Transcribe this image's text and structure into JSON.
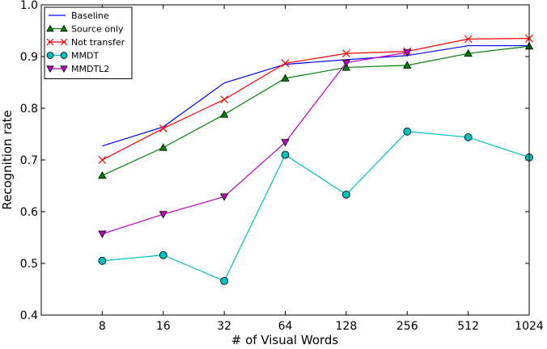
{
  "chart_data": {
    "type": "line",
    "title": "",
    "xlabel": "# of Visual Words",
    "ylabel": "Recognition rate",
    "x_ticks": [
      "8",
      "16",
      "32",
      "64",
      "128",
      "256",
      "512",
      "1024"
    ],
    "xlim_index": [
      -1,
      7
    ],
    "ylim": [
      0.4,
      1.0
    ],
    "y_ticks": [
      "0.4",
      "0.5",
      "0.6",
      "0.7",
      "0.8",
      "0.9",
      "1.0"
    ],
    "y_tick_values": [
      0.4,
      0.5,
      0.6,
      0.7,
      0.8,
      0.9,
      1.0
    ],
    "legend_position": "top-left",
    "grid": false,
    "series": [
      {
        "name": "Baseline",
        "color": "#0000ff",
        "marker": "none",
        "values": [
          0.727,
          0.764,
          0.849,
          0.885,
          0.894,
          0.902,
          0.921,
          0.921
        ]
      },
      {
        "name": "Source only",
        "color": "#008000",
        "marker": "triangle-up",
        "values": [
          0.67,
          0.724,
          0.788,
          0.858,
          0.879,
          0.883,
          0.906,
          0.92
        ]
      },
      {
        "name": "Not transfer",
        "color": "#ff0000",
        "marker": "x",
        "values": [
          0.7,
          0.761,
          0.817,
          0.887,
          0.906,
          0.91,
          0.934,
          0.935
        ]
      },
      {
        "name": "MMDT",
        "color": "#00bfbf",
        "marker": "circle",
        "values": [
          0.505,
          0.516,
          0.466,
          0.71,
          0.633,
          0.755,
          0.744,
          0.705
        ]
      },
      {
        "name": "MMDTL2",
        "color": "#bf00bf",
        "marker": "triangle-down",
        "values": [
          0.557,
          0.595,
          0.629,
          0.734,
          0.888,
          0.908,
          null,
          null
        ]
      }
    ]
  }
}
